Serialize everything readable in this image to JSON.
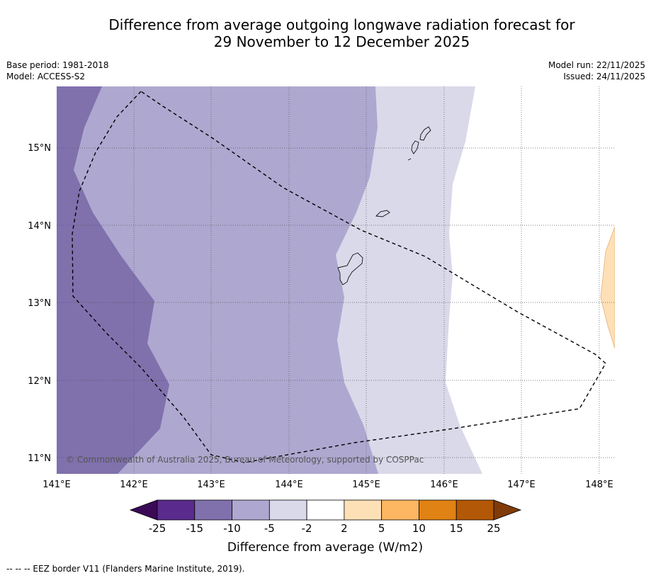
{
  "title_line1": "Difference from average outgoing longwave radiation forecast for",
  "title_line2": "29 November to 12 December 2025",
  "base_period": "Base period: 1981-2018",
  "model": "Model: ACCESS-S2",
  "model_run": "Model run: 22/11/2025",
  "issued": "Issued: 24/11/2025",
  "copyright": "© Commonwealth of Australia 2025, Bureau of Meteorology, supported by COSPPac",
  "lat_labels": [
    "15°N",
    "14°N",
    "13°N",
    "12°N",
    "11°N"
  ],
  "lon_labels": [
    "141°E",
    "142°E",
    "143°E",
    "144°E",
    "145°E",
    "146°E",
    "147°E",
    "148°E"
  ],
  "colorbar_ticks": [
    "-25",
    "-15",
    "-10",
    "-5",
    "-2",
    "2",
    "5",
    "10",
    "15",
    "25"
  ],
  "colorbar_colors": [
    "#5a2a8c",
    "#8071ad",
    "#aea8d0",
    "#d9d9ea",
    "#ffffff",
    "#fde0b6",
    "#fdb662",
    "#e08214",
    "#b35806"
  ],
  "colorbar_under": "#3b0a57",
  "colorbar_over": "#7f3b08",
  "colorbar_label": "Difference from average (W/m2)",
  "legend_note": "--  --  -- EEZ border V11 (Flanders Marine Institute, 2019)."
}
